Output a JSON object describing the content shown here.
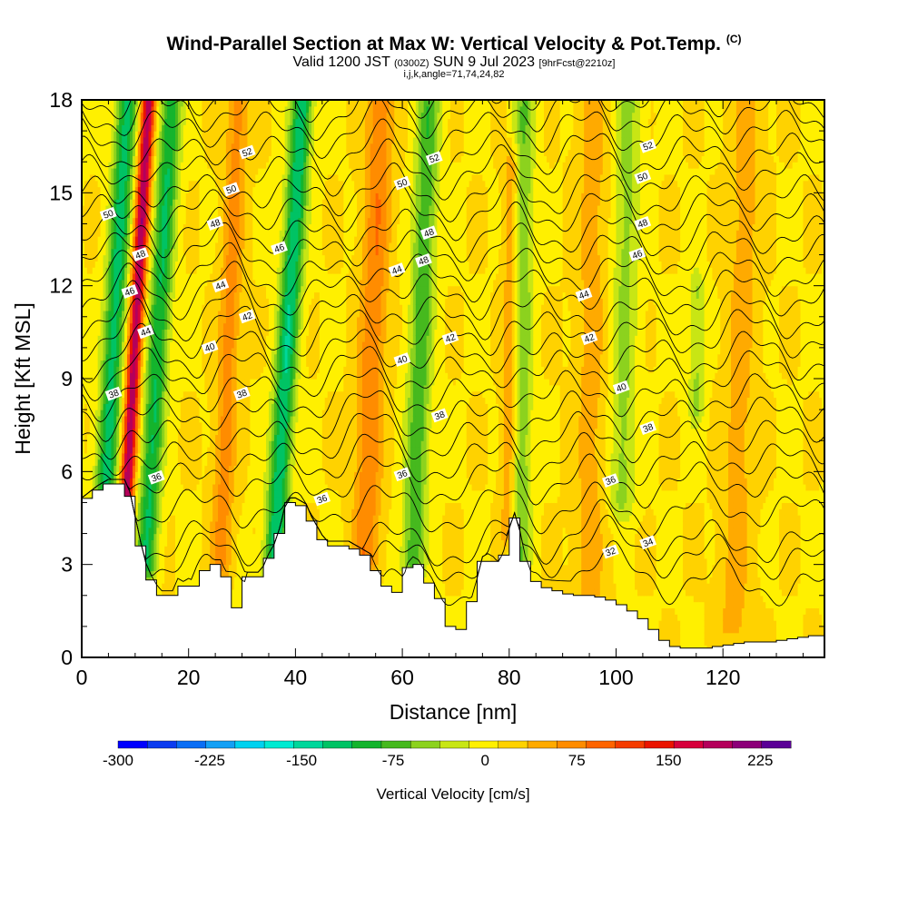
{
  "header": {
    "title_main": "Wind-Parallel Section at Max W: Vertical Velocity & Pot.Temp.",
    "title_mark": "(C)",
    "subtitle_a": "Valid 1200 JST",
    "subtitle_b": "(0300Z)",
    "subtitle_c": "SUN 9 Jul 2023",
    "subtitle_d": "[9hrFcst@2210z]",
    "subtitle2": "i,j,k,angle=71,74,24,82"
  },
  "chart_data": {
    "type": "heatmap",
    "xlabel": "Distance [nm]",
    "ylabel": "Height [Kft MSL]",
    "xlim": [
      0,
      139
    ],
    "ylim": [
      0,
      18
    ],
    "x_ticks": [
      0,
      20,
      40,
      60,
      80,
      100,
      120
    ],
    "y_ticks": [
      0,
      3,
      6,
      9,
      12,
      15,
      18
    ],
    "grid": false,
    "colorbar": {
      "label": "Vertical Velocity [cm/s]",
      "min": -300,
      "max": 250,
      "tick_values": [
        -300,
        -225,
        -150,
        -75,
        0,
        75,
        150,
        225
      ],
      "colors": [
        "#0000ff",
        "#0c3cf0",
        "#0a6ef5",
        "#14a0f5",
        "#00d2f0",
        "#00ebd2",
        "#00d79b",
        "#00c364",
        "#14b42d",
        "#46b91e",
        "#8cd21e",
        "#c8e614",
        "#fff000",
        "#ffd200",
        "#ffaa00",
        "#ff8c00",
        "#ff6400",
        "#f53c00",
        "#eb1400",
        "#d7003c",
        "#b4005a",
        "#8c0078",
        "#5a0096"
      ]
    },
    "terrain": [
      [
        0,
        5
      ],
      [
        3,
        5.4
      ],
      [
        5,
        5.6
      ],
      [
        8,
        5.6
      ],
      [
        9,
        5.2
      ],
      [
        10,
        4.4
      ],
      [
        11,
        3.6
      ],
      [
        12,
        2.9
      ],
      [
        13,
        2.5
      ],
      [
        14,
        2.2
      ],
      [
        15,
        2
      ],
      [
        16,
        2
      ],
      [
        17,
        2
      ],
      [
        18,
        2.4
      ],
      [
        19,
        2.3
      ],
      [
        20,
        2.4
      ],
      [
        21,
        2.3
      ],
      [
        22,
        2.6
      ],
      [
        23,
        2.8
      ],
      [
        24,
        3
      ],
      [
        26,
        3
      ],
      [
        27,
        2.6
      ],
      [
        28,
        2.1
      ],
      [
        29,
        1.6
      ],
      [
        30,
        2
      ],
      [
        31,
        2.6
      ],
      [
        33,
        2.6
      ],
      [
        34,
        2.8
      ],
      [
        35,
        3.2
      ],
      [
        36,
        3.5
      ],
      [
        37,
        4
      ],
      [
        38,
        4.7
      ],
      [
        39,
        5
      ],
      [
        40,
        5
      ],
      [
        42,
        4.8
      ],
      [
        43,
        4.4
      ],
      [
        44,
        4.1
      ],
      [
        45,
        3.8
      ],
      [
        46,
        3.6
      ],
      [
        48,
        3.6
      ],
      [
        50,
        3.6
      ],
      [
        52,
        3.4
      ],
      [
        54,
        3.2
      ],
      [
        55,
        2.8
      ],
      [
        56,
        2.5
      ],
      [
        57,
        2.3
      ],
      [
        58,
        2.1
      ],
      [
        59,
        2.1
      ],
      [
        60,
        2.3
      ],
      [
        61,
        2.9
      ],
      [
        62,
        3.1
      ],
      [
        63,
        3
      ],
      [
        64,
        2.7
      ],
      [
        65,
        2.4
      ],
      [
        66,
        2.2
      ],
      [
        67,
        1.9
      ],
      [
        68,
        1.5
      ],
      [
        69,
        1
      ],
      [
        70,
        0.8
      ],
      [
        71,
        0.9
      ],
      [
        72,
        1.2
      ],
      [
        73,
        1.8
      ],
      [
        74,
        2.4
      ],
      [
        75,
        3.1
      ],
      [
        76,
        3.2
      ],
      [
        77,
        3.1
      ],
      [
        78,
        2.9
      ],
      [
        79,
        3.3
      ],
      [
        80,
        4
      ],
      [
        81,
        4.5
      ],
      [
        82,
        3.9
      ],
      [
        83,
        3.1
      ],
      [
        84,
        2.6
      ],
      [
        86,
        2.3
      ],
      [
        88,
        2.2
      ],
      [
        90,
        2.1
      ],
      [
        92,
        2
      ],
      [
        94,
        2
      ],
      [
        96,
        2
      ],
      [
        98,
        1.9
      ],
      [
        100,
        1.8
      ],
      [
        102,
        1.6
      ],
      [
        104,
        1.4
      ],
      [
        106,
        1.1
      ],
      [
        108,
        0.7
      ],
      [
        110,
        0.4
      ],
      [
        112,
        0.3
      ],
      [
        114,
        0.3
      ],
      [
        116,
        0.3
      ],
      [
        118,
        0.3
      ],
      [
        120,
        0.4
      ],
      [
        122,
        0.4
      ],
      [
        124,
        0.5
      ],
      [
        126,
        0.5
      ],
      [
        128,
        0.5
      ],
      [
        130,
        0.5
      ],
      [
        132,
        0.6
      ],
      [
        134,
        0.6
      ],
      [
        136,
        0.7
      ],
      [
        139,
        0.7
      ]
    ],
    "updraft_bands": [
      {
        "x_base": 8,
        "slope_nm_per_kft": 0.32,
        "width_nm": 1.3,
        "peak_cms": 190,
        "z_min": 4,
        "z_max": 18
      },
      {
        "x_base": 26,
        "slope_nm_per_kft": 0.22,
        "width_nm": 2.0,
        "peak_cms": 60,
        "z_min": 3,
        "z_max": 18
      },
      {
        "x_base": 53,
        "slope_nm_per_kft": 0.2,
        "width_nm": 2.5,
        "peak_cms": 70,
        "z_min": 3,
        "z_max": 18
      },
      {
        "x_base": 80,
        "slope_nm_per_kft": 0.05,
        "width_nm": 1.5,
        "peak_cms": 55,
        "z_min": 4,
        "z_max": 16
      },
      {
        "x_base": 95,
        "slope_nm_per_kft": 0.05,
        "width_nm": 3.0,
        "peak_cms": 35,
        "z_min": 2,
        "z_max": 18
      },
      {
        "x_base": 122,
        "slope_nm_per_kft": 0.15,
        "width_nm": 3.0,
        "peak_cms": 35,
        "z_min": 1,
        "z_max": 18
      }
    ],
    "downdraft_bands": [
      {
        "x_base": 4,
        "slope_nm_per_kft": 0.32,
        "width_nm": 2.0,
        "peak_cms": -130,
        "z_min": 4,
        "z_max": 18
      },
      {
        "x_base": 12,
        "slope_nm_per_kft": 0.32,
        "width_nm": 2.0,
        "peak_cms": -120,
        "z_min": 3,
        "z_max": 18
      },
      {
        "x_base": 36,
        "slope_nm_per_kft": 0.35,
        "width_nm": 2.0,
        "peak_cms": -140,
        "z_min": 3,
        "z_max": 18
      },
      {
        "x_base": 62,
        "slope_nm_per_kft": 0.2,
        "width_nm": 2.2,
        "peak_cms": -90,
        "z_min": 3,
        "z_max": 18
      },
      {
        "x_base": 82,
        "slope_nm_per_kft": 0.05,
        "width_nm": 2.0,
        "peak_cms": -70,
        "z_min": 3,
        "z_max": 18
      },
      {
        "x_base": 101,
        "slope_nm_per_kft": 0.1,
        "width_nm": 2.5,
        "peak_cms": -55,
        "z_min": 5,
        "z_max": 18
      },
      {
        "x_base": 115,
        "slope_nm_per_kft": 0.03,
        "width_nm": 1.5,
        "peak_cms": -50,
        "z_min": 8,
        "z_max": 12
      }
    ],
    "theta_contours": {
      "levels": [
        30,
        31,
        32,
        33,
        34,
        35,
        36,
        37,
        38,
        39,
        40,
        41,
        42,
        43,
        44,
        45,
        46,
        47,
        48,
        49,
        50,
        51,
        52,
        53
      ],
      "base_height_kft": [
        2.2,
        3.0,
        3.5,
        4.6,
        5.5,
        6.2,
        6.9,
        7.6,
        8.3,
        9.0,
        9.6,
        10.3,
        10.9,
        11.6,
        12.2,
        12.9,
        13.5,
        14.2,
        14.8,
        15.5,
        16.1,
        16.8,
        17.4,
        18.0
      ],
      "labels": [
        {
          "text": "52",
          "x": 31,
          "z": 16.3
        },
        {
          "text": "52",
          "x": 66,
          "z": 16.1
        },
        {
          "text": "52",
          "x": 106,
          "z": 16.5
        },
        {
          "text": "50",
          "x": 5,
          "z": 14.3
        },
        {
          "text": "50",
          "x": 28,
          "z": 15.1
        },
        {
          "text": "50",
          "x": 60,
          "z": 15.3
        },
        {
          "text": "50",
          "x": 105,
          "z": 15.5
        },
        {
          "text": "48",
          "x": 25,
          "z": 14.0
        },
        {
          "text": "48",
          "x": 11,
          "z": 13.0
        },
        {
          "text": "48",
          "x": 65,
          "z": 13.7
        },
        {
          "text": "48",
          "x": 64,
          "z": 12.8
        },
        {
          "text": "48",
          "x": 105,
          "z": 14.0
        },
        {
          "text": "46",
          "x": 37,
          "z": 13.2
        },
        {
          "text": "46",
          "x": 104,
          "z": 13.0
        },
        {
          "text": "46",
          "x": 9,
          "z": 11.8
        },
        {
          "text": "44",
          "x": 26,
          "z": 12.0
        },
        {
          "text": "44",
          "x": 59,
          "z": 12.5
        },
        {
          "text": "44",
          "x": 94,
          "z": 11.7
        },
        {
          "text": "44",
          "x": 12,
          "z": 10.5
        },
        {
          "text": "42",
          "x": 31,
          "z": 11.0
        },
        {
          "text": "42",
          "x": 69,
          "z": 10.3
        },
        {
          "text": "42",
          "x": 95,
          "z": 10.3
        },
        {
          "text": "40",
          "x": 24,
          "z": 10.0
        },
        {
          "text": "40",
          "x": 60,
          "z": 9.6
        },
        {
          "text": "40",
          "x": 101,
          "z": 8.7
        },
        {
          "text": "38",
          "x": 6,
          "z": 8.5
        },
        {
          "text": "38",
          "x": 30,
          "z": 8.5
        },
        {
          "text": "38",
          "x": 67,
          "z": 7.8
        },
        {
          "text": "38",
          "x": 106,
          "z": 7.4
        },
        {
          "text": "36",
          "x": 14,
          "z": 5.8
        },
        {
          "text": "36",
          "x": 60,
          "z": 5.9
        },
        {
          "text": "36",
          "x": 99,
          "z": 5.7
        },
        {
          "text": "36",
          "x": 45,
          "z": 5.1
        },
        {
          "text": "34",
          "x": 106,
          "z": 3.7
        },
        {
          "text": "32",
          "x": 99,
          "z": 3.4
        }
      ]
    }
  }
}
